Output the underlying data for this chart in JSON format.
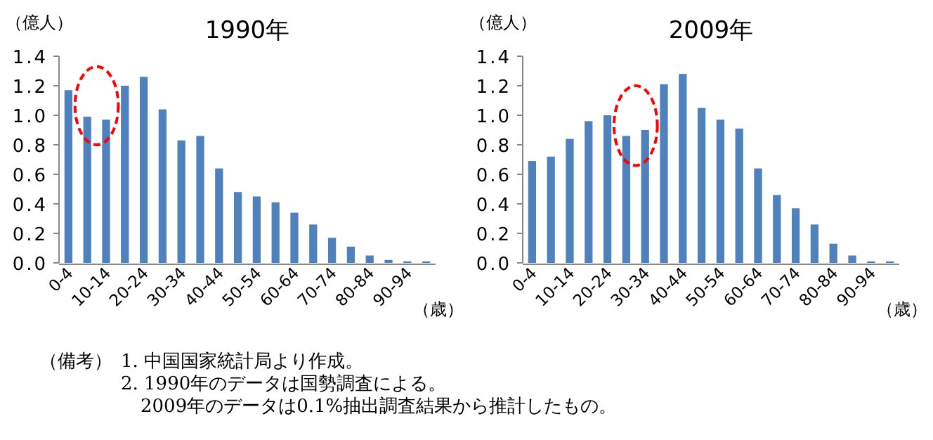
{
  "chart_data": [
    {
      "type": "bar",
      "title": "1990年",
      "ylabel": "（億人）",
      "xlabel": "（歳）",
      "categories": [
        "0-4",
        null,
        "10-14",
        null,
        "20-24",
        null,
        "30-34",
        null,
        "40-44",
        null,
        "50-54",
        null,
        "60-64",
        null,
        "70-74",
        null,
        "80-84",
        null,
        "90-94",
        null
      ],
      "values": [
        1.17,
        0.99,
        0.97,
        1.2,
        1.26,
        1.04,
        0.83,
        0.86,
        0.64,
        0.48,
        0.45,
        0.41,
        0.34,
        0.26,
        0.17,
        0.11,
        0.05,
        0.02,
        0.01,
        0.01
      ],
      "color": "#4f81bd",
      "ylim": [
        0,
        1.4
      ],
      "yticks": [
        {
          "value": 0,
          "label": "0.0"
        },
        {
          "value": 0.2,
          "label": "0.2"
        },
        {
          "value": 0.4,
          "label": "0.4"
        },
        {
          "value": 0.6,
          "label": "0.6"
        },
        {
          "value": 0.8,
          "label": "0.8"
        },
        {
          "value": 1.0,
          "label": "1.0"
        },
        {
          "value": 1.2,
          "label": "1.2"
        },
        {
          "value": 1.4,
          "label": "1.4"
        }
      ],
      "annotations": [
        "（備考）",
        "1. 中国国家統計局より作成。",
        "2. 1990年のデータは国勢調査による。",
        "2009年のデータは0.1%抽出調査結果から推計したもの。"
      ]
    },
    {
      "type": "bar",
      "title": "2009年",
      "ylabel": "（億人）",
      "xlabel": "（歳）",
      "categories": [
        "0-4",
        null,
        "10-14",
        null,
        "20-24",
        null,
        "30-34",
        null,
        "40-44",
        null,
        "50-54",
        null,
        "60-64",
        null,
        "70-74",
        null,
        "80-84",
        null,
        "90-94",
        null
      ],
      "values": [
        0.69,
        0.72,
        0.84,
        0.96,
        1.0,
        0.86,
        0.9,
        1.21,
        1.28,
        1.05,
        0.97,
        0.91,
        0.64,
        0.46,
        0.37,
        0.26,
        0.13,
        0.05,
        0.01,
        0.01
      ],
      "color": "#4f81bd",
      "ylim": [
        0,
        1.4
      ],
      "yticks": [
        {
          "value": 0,
          "label": "0.0"
        },
        {
          "value": 0.2,
          "label": "0.2"
        },
        {
          "value": 0.4,
          "label": "0.4"
        },
        {
          "value": 0.6,
          "label": "0.6"
        },
        {
          "value": 0.8,
          "label": "0.8"
        },
        {
          "value": 1.0,
          "label": "1.0"
        },
        {
          "value": 1.2,
          "label": "1.2"
        },
        {
          "value": 1.4,
          "label": "1.4"
        }
      ]
    }
  ]
}
